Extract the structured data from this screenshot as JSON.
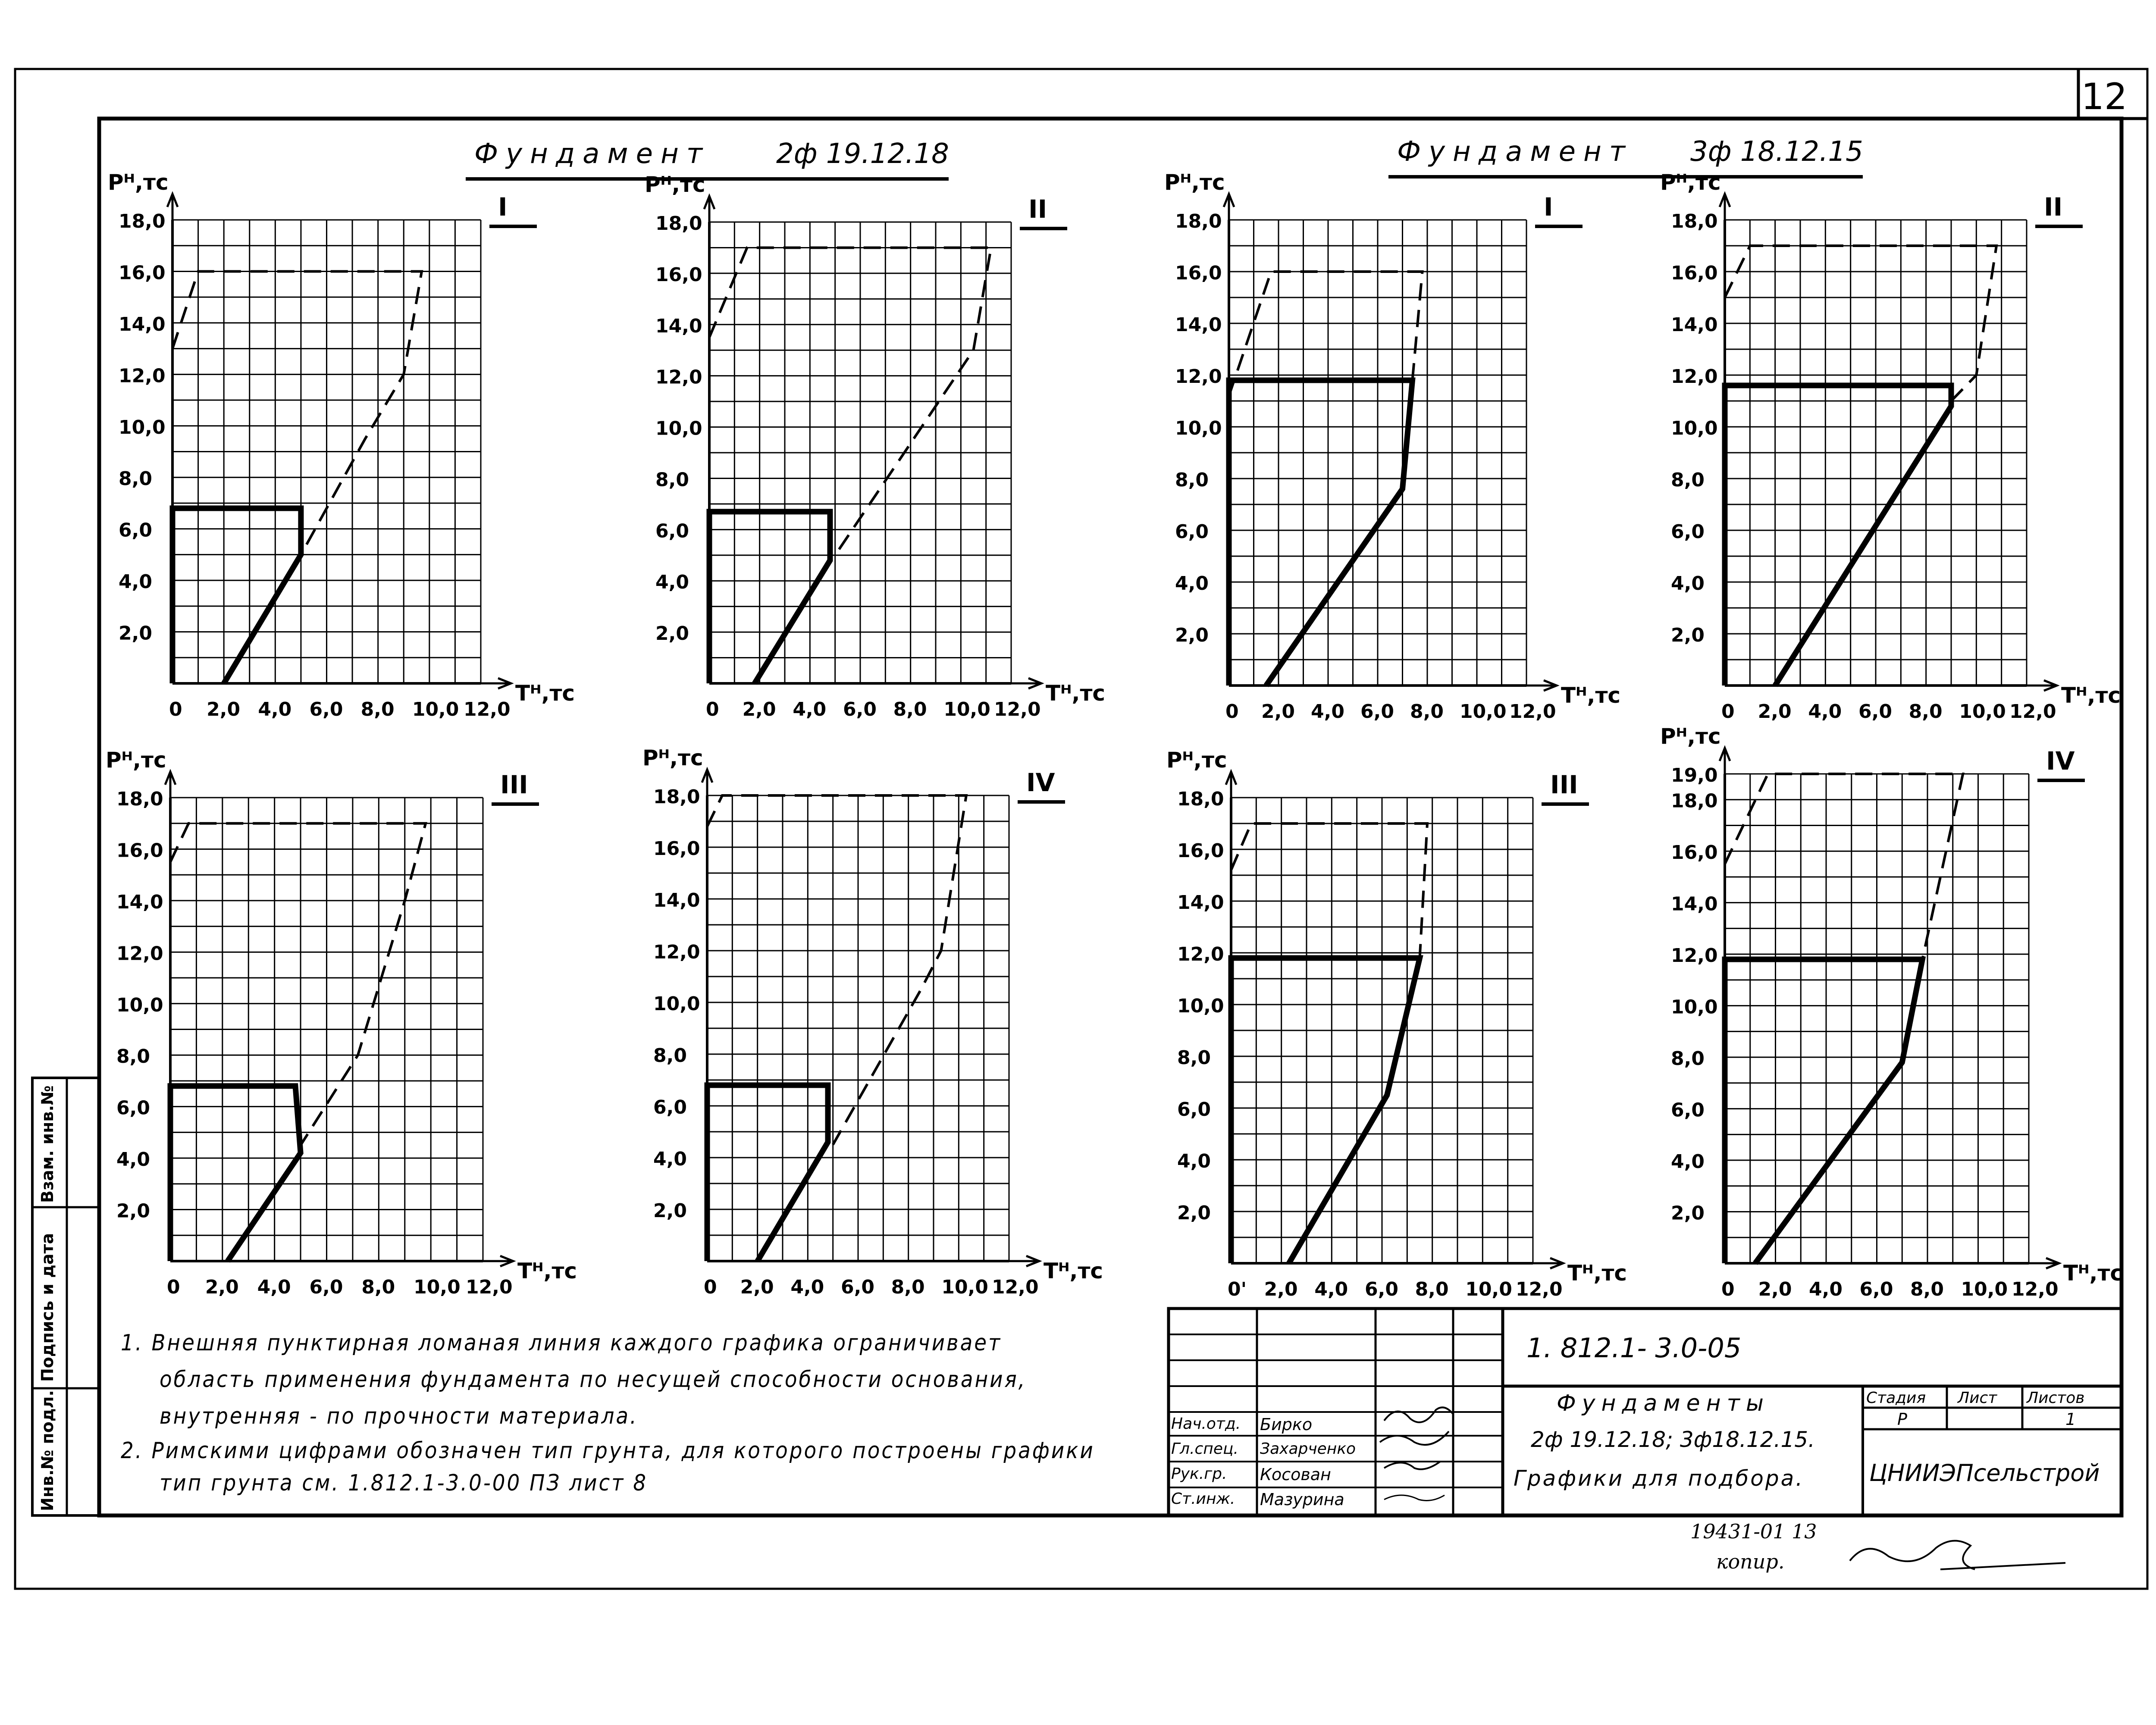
{
  "sheet": {
    "page_number": "12"
  },
  "headers": [
    {
      "title": "Фундамент",
      "code": "2ф 19.12.18"
    },
    {
      "title": "Фундамент",
      "code": "3ф 18.12.15"
    }
  ],
  "labels": {
    "p_axis": "Pᴴ,тс",
    "t_axis": "Tᴴ,тс"
  },
  "chart_data": [
    {
      "type": "line",
      "group": "2ф 19.12.18",
      "soil_type": "I",
      "xlim": [
        0,
        12
      ],
      "ylim": [
        0,
        18
      ],
      "x_ticks": [
        "0",
        "2,0",
        "4,0",
        "6,0",
        "8,0",
        "10,0",
        "12,0"
      ],
      "y_ticks": [
        "2,0",
        "4,0",
        "6,0",
        "8,0",
        "10,0",
        "12,0",
        "14,0",
        "16,0",
        "18,0"
      ],
      "xlabel": "Tᴴ, тс",
      "ylabel": "Pᴴ, тс",
      "series": [
        {
          "name": "основание (пунктир)",
          "style": "dashed",
          "x": [
            0,
            1,
            9.7,
            9,
            7.5,
            5
          ],
          "y": [
            13,
            16,
            16,
            12,
            9.5,
            5
          ]
        },
        {
          "name": "материал (сплошная)",
          "style": "solid",
          "x": [
            0,
            0,
            5,
            5,
            2
          ],
          "y": [
            0,
            6.8,
            6.8,
            5,
            0
          ]
        }
      ]
    },
    {
      "type": "line",
      "group": "2ф 19.12.18",
      "soil_type": "II",
      "xlim": [
        0,
        12
      ],
      "ylim": [
        0,
        18
      ],
      "x_ticks": [
        "0",
        "2,0",
        "4,0",
        "6,0",
        "8,0",
        "10,0",
        "12,0"
      ],
      "y_ticks": [
        "2,0",
        "4,0",
        "6,0",
        "8,0",
        "10,0",
        "12,0",
        "14,0",
        "16,0",
        "18,0"
      ],
      "xlabel": "Tᴴ, тс",
      "ylabel": "Pᴴ, тс",
      "series": [
        {
          "name": "основание (пунктир)",
          "style": "dashed",
          "x": [
            0,
            1.5,
            11.2,
            10.5,
            5
          ],
          "y": [
            13.5,
            17,
            17,
            13,
            5
          ]
        },
        {
          "name": "материал (сплошная)",
          "style": "solid",
          "x": [
            0,
            0,
            4.8,
            4.8,
            1.8
          ],
          "y": [
            0,
            6.7,
            6.7,
            4.8,
            0
          ]
        }
      ]
    },
    {
      "type": "line",
      "group": "3ф 18.12.15",
      "soil_type": "I",
      "xlim": [
        0,
        12
      ],
      "ylim": [
        0,
        18
      ],
      "x_ticks": [
        "0",
        "2,0",
        "4,0",
        "6,0",
        "8,0",
        "10,0",
        "12,0"
      ],
      "y_ticks": [
        "2,0",
        "4,0",
        "6,0",
        "8,0",
        "10,0",
        "12,0",
        "14,0",
        "16,0",
        "18,0"
      ],
      "xlabel": "Tᴴ, тс",
      "ylabel": "Pᴴ, тс",
      "series": [
        {
          "name": "основание (пунктир)",
          "style": "dashed",
          "x": [
            0,
            1.7,
            7.8,
            7.4
          ],
          "y": [
            11.2,
            16,
            16,
            11.8
          ]
        },
        {
          "name": "материал (сплошная)",
          "style": "solid",
          "x": [
            0,
            0,
            7.4,
            7,
            1.5
          ],
          "y": [
            0,
            11.8,
            11.8,
            7.6,
            0
          ]
        }
      ]
    },
    {
      "type": "line",
      "group": "3ф 18.12.15",
      "soil_type": "II",
      "xlim": [
        0,
        12
      ],
      "ylim": [
        0,
        18
      ],
      "x_ticks": [
        "0",
        "2,0",
        "4,0",
        "6,0",
        "8,0",
        "10,0",
        "12,0"
      ],
      "y_ticks": [
        "2,0",
        "4,0",
        "6,0",
        "8,0",
        "10,0",
        "12,0",
        "14,0",
        "16,0",
        "18,0"
      ],
      "xlabel": "Tᴴ, тс",
      "ylabel": "Pᴴ, тс",
      "series": [
        {
          "name": "основание (пунктир)",
          "style": "dashed",
          "x": [
            0,
            1,
            10.8,
            10,
            9
          ],
          "y": [
            15,
            17,
            17,
            12,
            11
          ]
        },
        {
          "name": "материал (сплошная)",
          "style": "solid",
          "x": [
            0,
            0,
            9,
            9,
            2
          ],
          "y": [
            0,
            11.6,
            11.6,
            10.8,
            0
          ]
        }
      ]
    },
    {
      "type": "line",
      "group": "2ф 19.12.18",
      "soil_type": "III",
      "xlim": [
        0,
        12
      ],
      "ylim": [
        0,
        18
      ],
      "x_ticks": [
        "0",
        "2,0",
        "4,0",
        "6,0",
        "8,0",
        "10,0",
        "12,0"
      ],
      "y_ticks": [
        "2,0",
        "4,0",
        "6,0",
        "8,0",
        "10,0",
        "12,0",
        "14,0",
        "16,0",
        "18,0"
      ],
      "xlabel": "Tᴴ, тс",
      "ylabel": "Pᴴ, тс",
      "series": [
        {
          "name": "основание (пунктир)",
          "style": "dashed",
          "x": [
            0,
            0.7,
            9.8,
            9,
            7.2,
            5
          ],
          "y": [
            15.5,
            17,
            17,
            14,
            8,
            4.5
          ]
        },
        {
          "name": "материал (сплошная)",
          "style": "solid",
          "x": [
            0,
            0,
            4.8,
            5,
            2.2
          ],
          "y": [
            0,
            6.8,
            6.8,
            4.2,
            0
          ]
        }
      ]
    },
    {
      "type": "line",
      "group": "2ф 19.12.18",
      "soil_type": "IV",
      "xlim": [
        0,
        12
      ],
      "ylim": [
        0,
        18
      ],
      "x_ticks": [
        "0",
        "2,0",
        "4,0",
        "6,0",
        "8,0",
        "10,0",
        "12,0"
      ],
      "y_ticks": [
        "2,0",
        "4,0",
        "6,0",
        "8,0",
        "10,0",
        "12,0",
        "14,0",
        "16,0",
        "18,0"
      ],
      "xlabel": "Tᴴ, тс",
      "ylabel": "Pᴴ, тс",
      "series": [
        {
          "name": "основание (пунктир)",
          "style": "dashed",
          "x": [
            0,
            0.6,
            10.3,
            9.3,
            8.5,
            5
          ],
          "y": [
            16.8,
            18,
            18,
            12,
            10.5,
            4.5
          ]
        },
        {
          "name": "материал (сплошная)",
          "style": "solid",
          "x": [
            0,
            0,
            4.8,
            4.8,
            2
          ],
          "y": [
            0,
            6.8,
            6.8,
            4.6,
            0
          ]
        }
      ]
    },
    {
      "type": "line",
      "group": "3ф 18.12.15",
      "soil_type": "III",
      "xlim": [
        0,
        12
      ],
      "ylim": [
        0,
        18
      ],
      "x_ticks": [
        "0'",
        "2,0",
        "4,0",
        "6,0",
        "8,0",
        "10,0",
        "12,0"
      ],
      "y_ticks": [
        "2,0",
        "4,0",
        "6,0",
        "8,0",
        "10,0",
        "12,0",
        "14,0",
        "16,0",
        "18,0"
      ],
      "xlabel": "Tᴴ, тс",
      "ylabel": "Pᴴ, тс",
      "series": [
        {
          "name": "основание (пунктир)",
          "style": "dashed",
          "x": [
            0,
            0.8,
            7.8,
            7.5
          ],
          "y": [
            15.2,
            17,
            17,
            11.8
          ]
        },
        {
          "name": "материал (сплошная)",
          "style": "solid",
          "x": [
            0,
            0,
            7.5,
            6.2,
            2.3
          ],
          "y": [
            0,
            11.8,
            11.8,
            6.5,
            0
          ]
        }
      ]
    },
    {
      "type": "line",
      "group": "3ф 18.12.15",
      "soil_type": "IV",
      "xlim": [
        0,
        12
      ],
      "ylim": [
        0,
        19
      ],
      "x_ticks": [
        "0",
        "2,0",
        "4,0",
        "6,0",
        "8,0",
        "10,0",
        "12,0"
      ],
      "y_ticks": [
        "2,0",
        "4,0",
        "6,0",
        "8,0",
        "10,0",
        "12,0",
        "14,0",
        "16,0",
        "18,0",
        "19,0"
      ],
      "xlabel": "Tᴴ, тс",
      "ylabel": "Pᴴ, тс",
      "series": [
        {
          "name": "основание (пунктир)",
          "style": "dashed",
          "x": [
            0,
            1.7,
            9.4,
            7.8
          ],
          "y": [
            15.5,
            19,
            19,
            11.8
          ]
        },
        {
          "name": "материал (сплошная)",
          "style": "solid",
          "x": [
            0,
            0,
            7.8,
            7,
            1.2
          ],
          "y": [
            0,
            11.8,
            11.8,
            7.8,
            0
          ]
        }
      ]
    }
  ],
  "notes": [
    "1. Внешняя пунктирная ломаная линия каждого графика ограничивает",
    "область применения фундамента по несущей способности основания,",
    "внутренняя - по прочности материала.",
    "2. Римскими цифрами обозначен тип грунта, для которого построены графики",
    "тип грунта см. 1.812.1-3.0-00 ПЗ лист 8"
  ],
  "side_stamp": [
    "Инв.№ подл.",
    "Подпись и дата",
    "Взам. инв.№"
  ],
  "title_block": {
    "doc_code": "1. 812.1- 3.0-05",
    "title": "Фундаменты",
    "subtitle": "2ф 19.12.18;   3ф18.12.15.",
    "subtitle2": "Графики для подбора.",
    "col_stage": "Стадия",
    "col_sheet": "Лист",
    "col_sheets": "Листов",
    "stage": "Р",
    "sheet_count": "1",
    "org": "ЦНИИЭПсельстрой",
    "signatories": [
      {
        "role": "Нач.отд.",
        "name": "Бирко"
      },
      {
        "role": "Гл.спец.",
        "name": "Захарченко"
      },
      {
        "role": "Рук.гр.",
        "name": "Косован"
      },
      {
        "role": "Ст.инж.",
        "name": "Мазурина"
      }
    ]
  },
  "stamp": {
    "number": "19431-01  13",
    "copy": "копир."
  }
}
